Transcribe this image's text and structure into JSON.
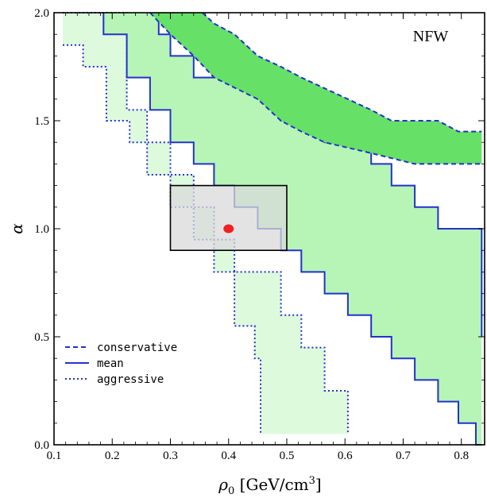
{
  "chart_data": {
    "type": "area",
    "panel_label": "NFW",
    "xlabel_symbol": "ρ",
    "xlabel_sub": "0",
    "xlabel_unit": " [GeV/cm",
    "xlabel_sup": "3",
    "xlabel_close": "]",
    "ylabel": "α",
    "xlim": [
      0.1,
      0.84
    ],
    "ylim": [
      0.0,
      2.0
    ],
    "xticks": [
      0.1,
      0.2,
      0.3,
      0.4,
      0.5,
      0.6,
      0.7,
      0.8
    ],
    "xtick_labels": [
      "0.1",
      "0.2",
      "0.3",
      "0.4",
      "0.5",
      "0.6",
      "0.7",
      "0.8"
    ],
    "yticks": [
      0.0,
      0.5,
      1.0,
      1.5,
      2.0
    ],
    "ytick_labels": [
      "0.0",
      "0.5",
      "1.0",
      "1.5",
      "2.0"
    ],
    "colors": {
      "line": "#2233cc",
      "aggressive_fill": "#ddfadd",
      "mean_fill": "#b6f5b6",
      "conservative_fill": "#66e066",
      "box_fill": "#d9d9d9",
      "box_stroke": "#000000",
      "point": "#ee2222"
    },
    "legend": {
      "position": "bottom-left",
      "entries": [
        {
          "label": "conservative",
          "style": "dashed"
        },
        {
          "label": "mean",
          "style": "solid"
        },
        {
          "label": "aggressive",
          "style": "dotted"
        }
      ]
    },
    "series": [
      {
        "name": "aggressive",
        "style": "dotted",
        "fill": "aggressive_fill",
        "lower": [
          [
            0.115,
            1.85
          ],
          [
            0.15,
            1.85
          ],
          [
            0.15,
            1.75
          ],
          [
            0.19,
            1.75
          ],
          [
            0.19,
            1.5
          ],
          [
            0.23,
            1.5
          ],
          [
            0.23,
            1.4
          ],
          [
            0.26,
            1.4
          ],
          [
            0.26,
            1.25
          ],
          [
            0.3,
            1.25
          ],
          [
            0.3,
            1.1
          ],
          [
            0.34,
            1.1
          ],
          [
            0.34,
            0.95
          ],
          [
            0.375,
            0.95
          ],
          [
            0.375,
            0.8
          ],
          [
            0.41,
            0.8
          ],
          [
            0.41,
            0.55
          ],
          [
            0.445,
            0.55
          ],
          [
            0.445,
            0.4
          ],
          [
            0.455,
            0.4
          ],
          [
            0.455,
            0.05
          ]
        ],
        "upper": [
          [
            0.115,
            2.0
          ],
          [
            0.225,
            2.0
          ],
          [
            0.225,
            1.55
          ],
          [
            0.26,
            1.55
          ],
          [
            0.26,
            1.4
          ],
          [
            0.3,
            1.4
          ],
          [
            0.3,
            1.25
          ],
          [
            0.34,
            1.25
          ],
          [
            0.34,
            1.1
          ],
          [
            0.375,
            1.1
          ],
          [
            0.375,
            0.95
          ],
          [
            0.41,
            0.95
          ],
          [
            0.41,
            0.8
          ],
          [
            0.49,
            0.8
          ],
          [
            0.49,
            0.6
          ],
          [
            0.525,
            0.6
          ],
          [
            0.525,
            0.45
          ],
          [
            0.565,
            0.45
          ],
          [
            0.565,
            0.25
          ],
          [
            0.605,
            0.25
          ],
          [
            0.605,
            0.05
          ]
        ]
      },
      {
        "name": "mean",
        "style": "solid",
        "fill": "mean_fill",
        "lower": [
          [
            0.185,
            2.0
          ],
          [
            0.185,
            1.9
          ],
          [
            0.225,
            1.9
          ],
          [
            0.225,
            1.7
          ],
          [
            0.265,
            1.7
          ],
          [
            0.265,
            1.55
          ],
          [
            0.3,
            1.55
          ],
          [
            0.3,
            1.4
          ],
          [
            0.34,
            1.4
          ],
          [
            0.34,
            1.3
          ],
          [
            0.375,
            1.3
          ],
          [
            0.375,
            1.2
          ],
          [
            0.41,
            1.2
          ],
          [
            0.41,
            1.1
          ],
          [
            0.45,
            1.1
          ],
          [
            0.45,
            1.0
          ],
          [
            0.49,
            1.0
          ],
          [
            0.49,
            0.9
          ],
          [
            0.525,
            0.9
          ],
          [
            0.525,
            0.8
          ],
          [
            0.565,
            0.8
          ],
          [
            0.565,
            0.7
          ],
          [
            0.605,
            0.7
          ],
          [
            0.605,
            0.6
          ],
          [
            0.645,
            0.6
          ],
          [
            0.645,
            0.5
          ],
          [
            0.68,
            0.5
          ],
          [
            0.68,
            0.4
          ],
          [
            0.72,
            0.4
          ],
          [
            0.72,
            0.3
          ],
          [
            0.76,
            0.3
          ],
          [
            0.76,
            0.2
          ],
          [
            0.795,
            0.2
          ],
          [
            0.795,
            0.1
          ],
          [
            0.825,
            0.1
          ],
          [
            0.825,
            0.0
          ],
          [
            0.835,
            0.0
          ]
        ],
        "upper": [
          [
            0.28,
            2.0
          ],
          [
            0.28,
            1.9
          ],
          [
            0.3,
            1.9
          ],
          [
            0.3,
            1.8
          ],
          [
            0.34,
            1.8
          ],
          [
            0.34,
            1.7
          ],
          [
            0.45,
            1.7
          ],
          [
            0.45,
            1.6
          ],
          [
            0.49,
            1.6
          ],
          [
            0.49,
            1.5
          ],
          [
            0.565,
            1.5
          ],
          [
            0.565,
            1.4
          ],
          [
            0.645,
            1.4
          ],
          [
            0.645,
            1.3
          ],
          [
            0.68,
            1.3
          ],
          [
            0.68,
            1.2
          ],
          [
            0.72,
            1.2
          ],
          [
            0.72,
            1.1
          ],
          [
            0.76,
            1.1
          ],
          [
            0.76,
            1.0
          ],
          [
            0.835,
            1.0
          ],
          [
            0.835,
            0.5
          ]
        ]
      },
      {
        "name": "conservative",
        "style": "dashed",
        "fill": "conservative_fill",
        "lower": [
          [
            0.265,
            2.0
          ],
          [
            0.3,
            1.9
          ],
          [
            0.34,
            1.8
          ],
          [
            0.375,
            1.7
          ],
          [
            0.45,
            1.6
          ],
          [
            0.49,
            1.5
          ],
          [
            0.525,
            1.45
          ],
          [
            0.565,
            1.4
          ],
          [
            0.645,
            1.35
          ],
          [
            0.72,
            1.3
          ],
          [
            0.835,
            1.3
          ]
        ],
        "upper": [
          [
            0.355,
            2.0
          ],
          [
            0.375,
            1.95
          ],
          [
            0.41,
            1.9
          ],
          [
            0.45,
            1.8
          ],
          [
            0.49,
            1.75
          ],
          [
            0.525,
            1.7
          ],
          [
            0.565,
            1.65
          ],
          [
            0.605,
            1.6
          ],
          [
            0.645,
            1.55
          ],
          [
            0.68,
            1.5
          ],
          [
            0.76,
            1.5
          ],
          [
            0.795,
            1.45
          ],
          [
            0.835,
            1.45
          ]
        ]
      }
    ],
    "box": {
      "x": [
        0.3,
        0.5
      ],
      "y": [
        0.9,
        1.2
      ]
    },
    "point": {
      "x": 0.4,
      "y": 1.0
    }
  }
}
